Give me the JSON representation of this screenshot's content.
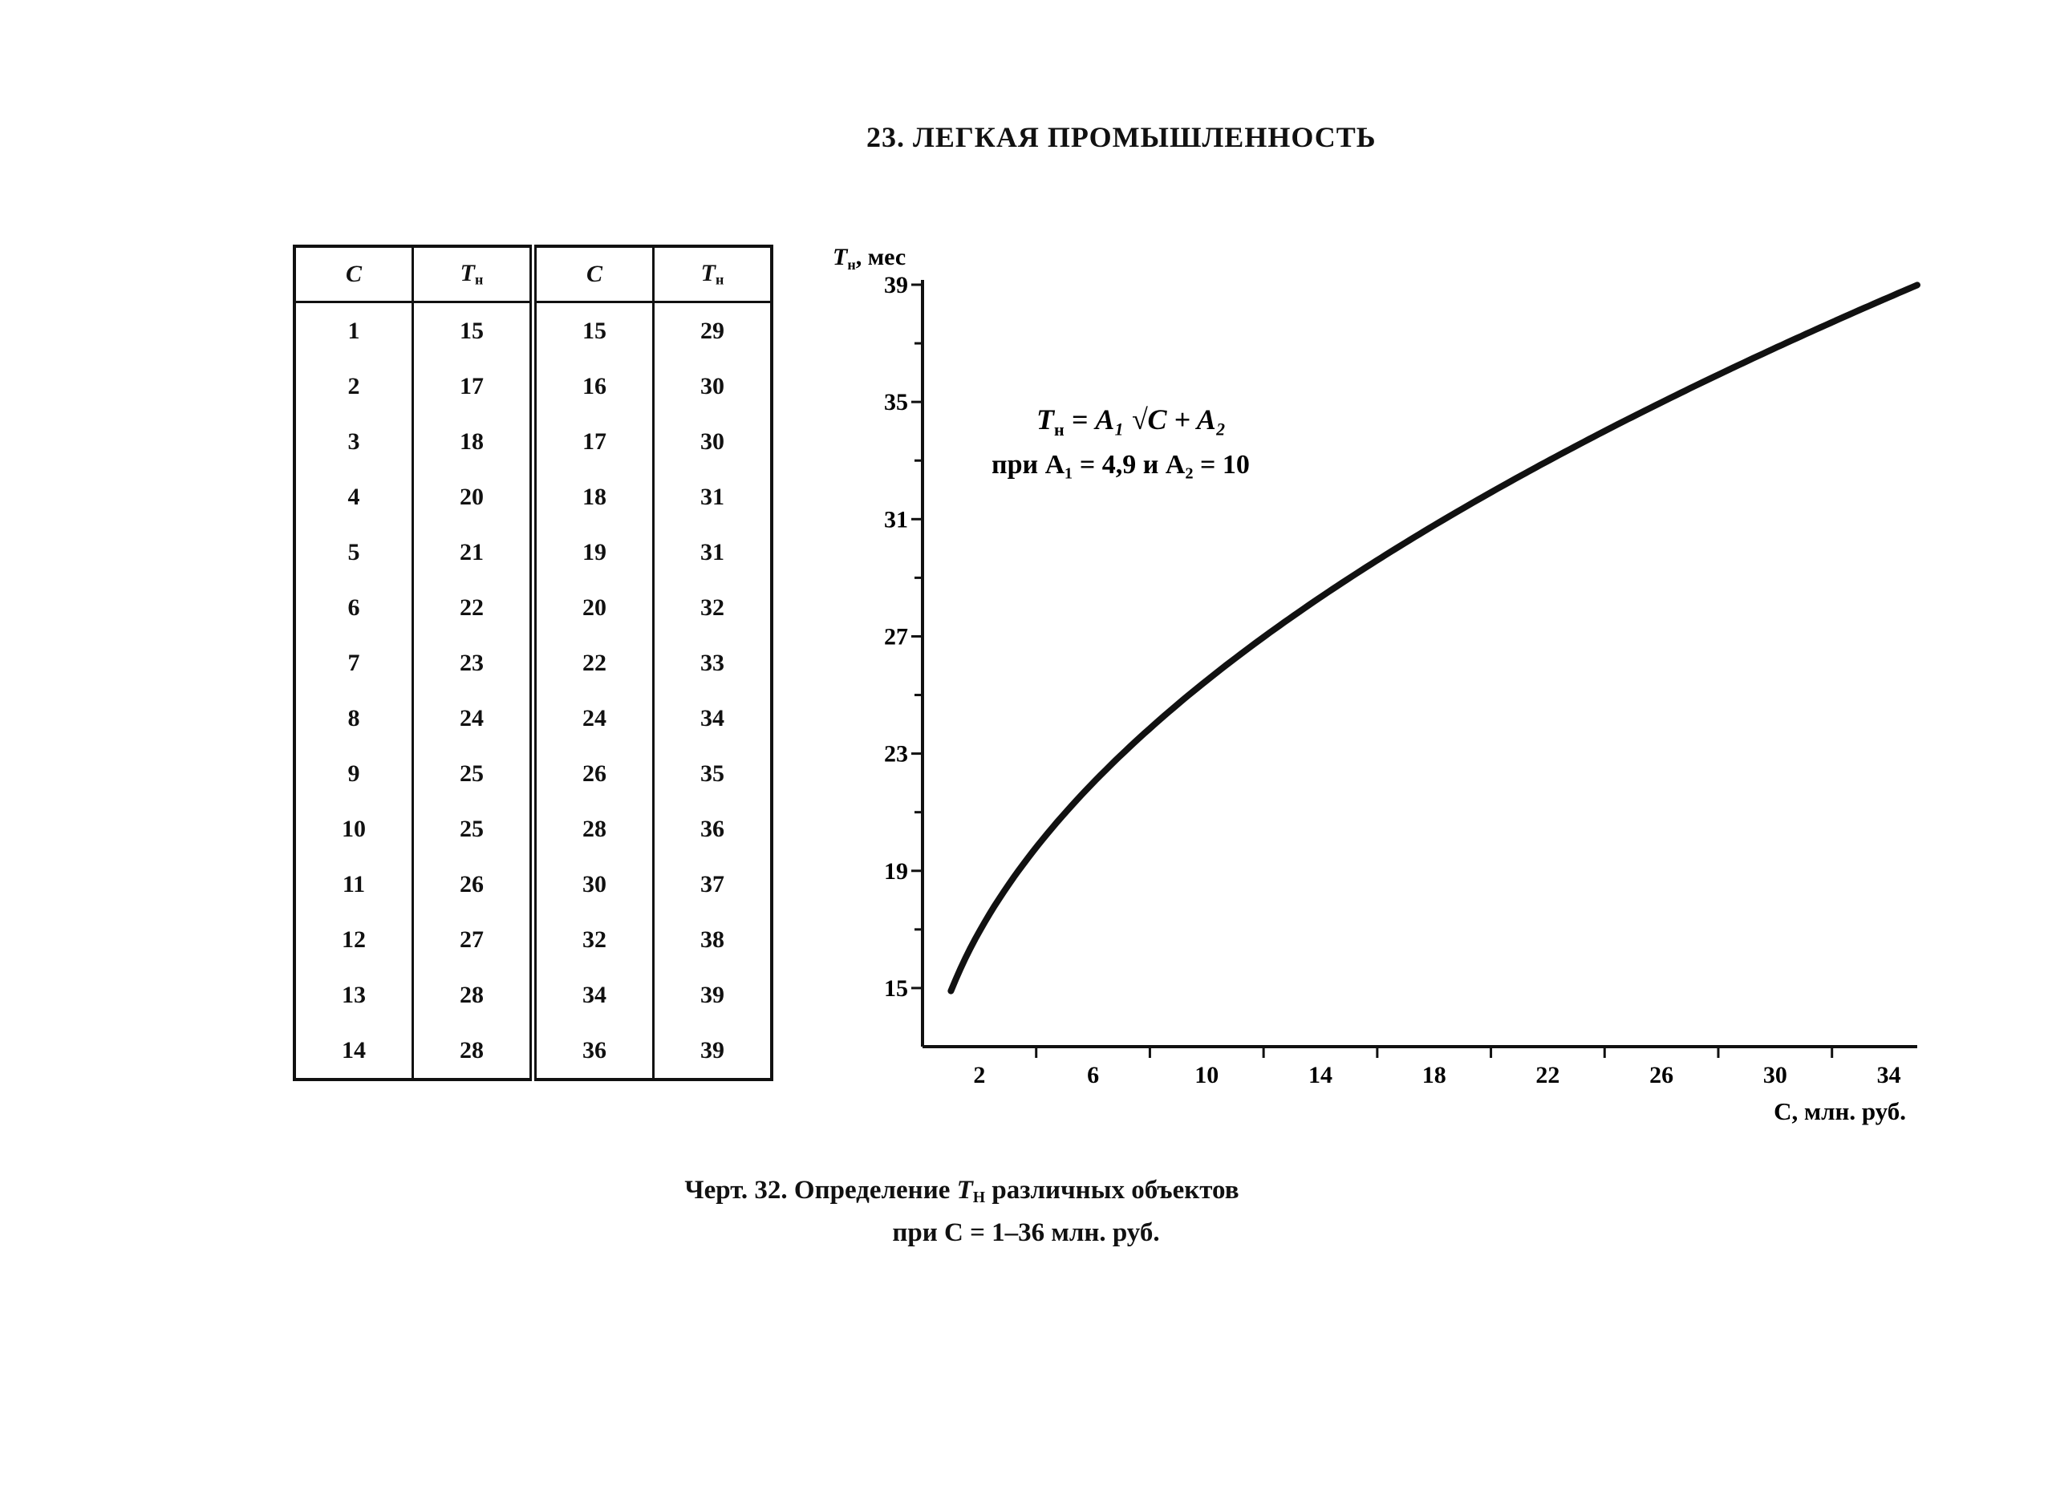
{
  "page": {
    "title": "23. ЛЕГКАЯ ПРОМЫШЛЕННОСТЬ"
  },
  "table": {
    "headers": [
      {
        "main": "C",
        "sub": ""
      },
      {
        "main": "T",
        "sub": "н"
      },
      {
        "main": "C",
        "sub": ""
      },
      {
        "main": "T",
        "sub": "н"
      }
    ],
    "rows": [
      [
        "1",
        "15",
        "15",
        "29"
      ],
      [
        "2",
        "17",
        "16",
        "30"
      ],
      [
        "3",
        "18",
        "17",
        "30"
      ],
      [
        "4",
        "20",
        "18",
        "31"
      ],
      [
        "5",
        "21",
        "19",
        "31"
      ],
      [
        "6",
        "22",
        "20",
        "32"
      ],
      [
        "7",
        "23",
        "22",
        "33"
      ],
      [
        "8",
        "24",
        "24",
        "34"
      ],
      [
        "9",
        "25",
        "26",
        "35"
      ],
      [
        "10",
        "25",
        "28",
        "36"
      ],
      [
        "11",
        "26",
        "30",
        "37"
      ],
      [
        "12",
        "27",
        "32",
        "38"
      ],
      [
        "13",
        "28",
        "34",
        "39"
      ],
      [
        "14",
        "28",
        "36",
        "39"
      ]
    ]
  },
  "chart_data": {
    "type": "line",
    "ylabel_main": "T",
    "ylabel_sub": "н",
    "ylabel_unit": ", мес",
    "xlabel": "C, млн. руб.",
    "yticks": [
      15,
      19,
      23,
      27,
      31,
      35,
      39
    ],
    "xticks": [
      2,
      6,
      10,
      14,
      18,
      22,
      26,
      30,
      34
    ],
    "xlim": [
      0,
      35
    ],
    "ylim": [
      13,
      39
    ],
    "grid": false,
    "formula_line1": "T",
    "formula_line1_sub": "н",
    "formula_line1_rest": " = A₁ √C + A₂",
    "formula_line2": "при A₁ = 4,9 и A₂ = 10",
    "curve": {
      "a1": 4.9,
      "a2": 10,
      "x_from": 1,
      "x_to": 35
    },
    "series": [
      {
        "x": [
          1,
          2,
          3,
          4,
          5,
          6,
          8,
          10,
          12,
          14,
          16,
          18,
          20,
          22,
          24,
          26,
          28,
          30,
          32,
          34,
          35
        ],
        "values": [
          14.9,
          16.9,
          18.5,
          19.8,
          21.0,
          22.0,
          23.9,
          25.5,
          27.0,
          28.3,
          29.6,
          30.8,
          31.9,
          33.0,
          34.0,
          35.0,
          35.9,
          36.8,
          37.7,
          38.6,
          39.0
        ]
      }
    ]
  },
  "caption": {
    "line1_prefix": "Черт. 32. Определение ",
    "line1_var": "T",
    "line1_sub": "Н",
    "line1_suffix": " различных объектов",
    "line2": "при C = 1–36 млн. руб."
  }
}
